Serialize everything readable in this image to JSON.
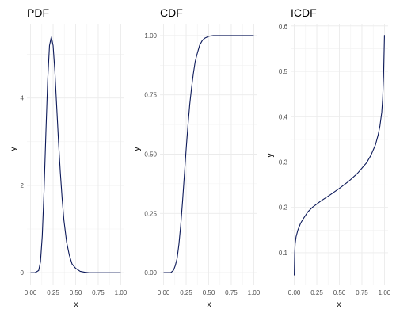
{
  "chart_data": [
    {
      "type": "line",
      "title": "PDF",
      "xlabel": "x",
      "ylabel": "y",
      "xlim": [
        -0.04,
        1.04
      ],
      "ylim": [
        -0.27,
        5.7
      ],
      "xticks": [
        0.0,
        0.25,
        0.5,
        0.75,
        1.0
      ],
      "xtick_labels": [
        "0.00",
        "0.25",
        "0.50",
        "0.75",
        "1.00"
      ],
      "yticks": [
        0,
        2,
        4
      ],
      "ytick_labels": [
        "0",
        "2",
        "4"
      ],
      "minor_y": [
        1,
        3,
        5
      ],
      "grid": true,
      "color": "#0d1a5a",
      "series": [
        {
          "x": [
            0.0,
            0.05,
            0.09,
            0.11,
            0.13,
            0.15,
            0.17,
            0.19,
            0.21,
            0.23,
            0.25,
            0.27,
            0.29,
            0.31,
            0.33,
            0.35,
            0.37,
            0.4,
            0.43,
            0.46,
            0.5,
            0.55,
            0.6,
            0.65,
            0.7,
            0.8,
            0.9,
            1.0
          ],
          "y": [
            0.0,
            0.0,
            0.05,
            0.25,
            0.85,
            1.9,
            3.2,
            4.4,
            5.2,
            5.4,
            5.2,
            4.6,
            3.8,
            3.0,
            2.3,
            1.7,
            1.2,
            0.7,
            0.4,
            0.2,
            0.1,
            0.03,
            0.01,
            0.0,
            0.0,
            0.0,
            0.0,
            0.0
          ]
        }
      ]
    },
    {
      "type": "line",
      "title": "CDF",
      "xlabel": "x",
      "ylabel": "y",
      "xlim": [
        -0.04,
        1.04
      ],
      "ylim": [
        -0.05,
        1.05
      ],
      "xticks": [
        0.0,
        0.25,
        0.5,
        0.75,
        1.0
      ],
      "xtick_labels": [
        "0.00",
        "0.25",
        "0.50",
        "0.75",
        "1.00"
      ],
      "yticks": [
        0.0,
        0.25,
        0.5,
        0.75,
        1.0
      ],
      "ytick_labels": [
        "0.00",
        "0.25",
        "0.50",
        "0.75",
        "1.00"
      ],
      "minor_y": [
        0.125,
        0.375,
        0.625,
        0.875
      ],
      "grid": true,
      "color": "#0d1a5a",
      "series": [
        {
          "x": [
            0.0,
            0.08,
            0.11,
            0.13,
            0.15,
            0.17,
            0.19,
            0.21,
            0.23,
            0.25,
            0.27,
            0.29,
            0.31,
            0.33,
            0.35,
            0.37,
            0.4,
            0.43,
            0.46,
            0.5,
            0.55,
            0.6,
            0.7,
            0.8,
            0.9,
            1.0
          ],
          "y": [
            0.0,
            0.0,
            0.01,
            0.03,
            0.06,
            0.12,
            0.2,
            0.3,
            0.41,
            0.52,
            0.62,
            0.71,
            0.78,
            0.84,
            0.89,
            0.92,
            0.96,
            0.98,
            0.99,
            0.997,
            1.0,
            1.0,
            1.0,
            1.0,
            1.0,
            1.0
          ]
        }
      ]
    },
    {
      "type": "line",
      "title": "ICDF",
      "xlabel": "x",
      "ylabel": "y",
      "xlim": [
        -0.04,
        1.04
      ],
      "ylim": [
        0.03,
        0.605
      ],
      "xticks": [
        0.0,
        0.25,
        0.5,
        0.75,
        1.0
      ],
      "xtick_labels": [
        "0.00",
        "0.25",
        "0.50",
        "0.75",
        "1.00"
      ],
      "yticks": [
        0.1,
        0.2,
        0.3,
        0.4,
        0.5,
        0.6
      ],
      "ytick_labels": [
        "0.1",
        "0.2",
        "0.3",
        "0.4",
        "0.5",
        "0.6"
      ],
      "minor_y": [
        0.15,
        0.25,
        0.35,
        0.45,
        0.55
      ],
      "grid": true,
      "color": "#0d1a5a",
      "series": [
        {
          "x": [
            0.0,
            0.005,
            0.01,
            0.02,
            0.04,
            0.07,
            0.1,
            0.15,
            0.2,
            0.3,
            0.4,
            0.5,
            0.6,
            0.7,
            0.8,
            0.85,
            0.9,
            0.93,
            0.95,
            0.97,
            0.98,
            0.99,
            1.0
          ],
          "y": [
            0.05,
            0.1,
            0.12,
            0.135,
            0.15,
            0.165,
            0.175,
            0.19,
            0.2,
            0.215,
            0.228,
            0.242,
            0.257,
            0.275,
            0.298,
            0.315,
            0.338,
            0.36,
            0.38,
            0.41,
            0.44,
            0.49,
            0.58
          ]
        }
      ]
    }
  ]
}
